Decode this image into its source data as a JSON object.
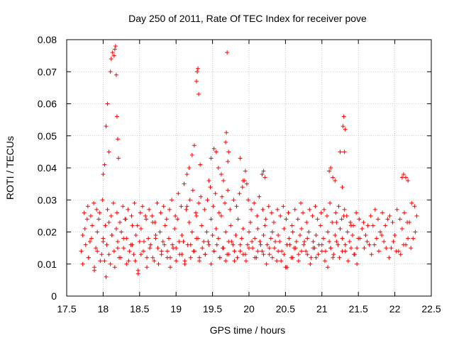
{
  "chart_data": {
    "type": "scatter",
    "title": "Day 250 of 2011, Rate Of TEC Index for receiver pove",
    "xlabel": "GPS time / hours",
    "ylabel": "ROTI / TECUs",
    "xlim": [
      17.5,
      22.5
    ],
    "ylim": [
      0,
      0.08
    ],
    "xticks": [
      "17.5",
      "18",
      "18.5",
      "19",
      "19.5",
      "20",
      "20.5",
      "21",
      "21.5",
      "22",
      "22.5"
    ],
    "xtick_values": [
      17.5,
      18,
      18.5,
      19,
      19.5,
      20,
      20.5,
      21,
      21.5,
      22,
      22.5
    ],
    "yticks": [
      "0",
      "0.01",
      "0.02",
      "0.03",
      "0.04",
      "0.05",
      "0.06",
      "0.07",
      "0.08"
    ],
    "ytick_values": [
      0,
      0.01,
      0.02,
      0.03,
      0.04,
      0.05,
      0.06,
      0.07,
      0.08
    ],
    "grid": true,
    "marker": "+",
    "color": "#ff0000",
    "series": [
      {
        "name": "ROTI",
        "x": [
          17.7,
          17.72,
          17.75,
          17.78,
          17.8,
          17.82,
          17.85,
          17.88,
          17.9,
          17.92,
          17.95,
          17.98,
          18.0,
          18.02,
          18.05,
          18.08,
          18.1,
          18.12,
          18.15,
          18.18,
          18.2,
          18.22,
          18.25,
          18.28,
          18.3,
          18.32,
          18.35,
          18.38,
          18.4,
          18.42,
          18.45,
          18.48,
          18.5,
          18.52,
          18.55,
          18.58,
          18.6,
          18.62,
          18.65,
          18.68,
          18.7,
          18.72,
          18.75,
          18.78,
          18.8,
          18.82,
          18.85,
          18.88,
          18.9,
          18.92,
          18.95,
          18.98,
          19.0,
          19.02,
          19.05,
          19.08,
          19.1,
          19.12,
          19.15,
          19.18,
          19.2,
          19.22,
          19.25,
          19.28,
          19.3,
          19.32,
          19.35,
          19.38,
          19.4,
          19.42,
          19.45,
          19.48,
          19.5,
          19.52,
          19.55,
          19.58,
          19.6,
          19.62,
          19.65,
          19.68,
          19.7,
          19.72,
          19.75,
          19.78,
          19.8,
          19.82,
          19.85,
          19.88,
          19.9,
          19.92,
          19.95,
          19.98,
          20.0,
          20.02,
          20.05,
          20.08,
          20.1,
          20.12,
          20.15,
          20.18,
          20.2,
          20.22,
          20.25,
          20.28,
          20.3,
          20.32,
          20.35,
          20.38,
          20.4,
          20.42,
          20.45,
          20.48,
          20.5,
          20.52,
          20.55,
          20.58,
          20.6,
          20.62,
          20.65,
          20.68,
          20.7,
          20.72,
          20.75,
          20.78,
          20.8,
          20.82,
          20.85,
          20.88,
          20.9,
          20.92,
          20.95,
          20.98,
          21.0,
          21.02,
          21.05,
          21.08,
          21.1,
          21.12,
          21.15,
          21.18,
          21.2,
          21.22,
          21.25,
          21.28,
          21.3,
          21.32,
          21.35,
          21.38,
          21.4,
          21.42,
          21.45,
          21.48,
          21.5,
          21.55,
          21.6,
          21.65,
          21.7,
          21.75,
          21.8,
          21.85,
          21.9,
          21.95,
          22.0,
          22.05,
          22.1,
          22.15,
          22.2,
          22.25,
          22.3,
          17.72,
          17.76,
          17.8,
          17.84,
          17.88,
          17.92,
          17.96,
          18.0,
          18.04,
          18.08,
          18.12,
          18.16,
          18.2,
          18.24,
          18.28,
          18.32,
          18.36,
          18.4,
          18.44,
          18.48,
          18.52,
          18.56,
          18.6,
          18.64,
          18.68,
          18.72,
          18.76,
          18.8,
          18.84,
          18.88,
          18.92,
          18.96,
          19.0,
          19.04,
          19.08,
          19.12,
          19.16,
          19.2,
          19.24,
          19.28,
          19.32,
          19.36,
          19.4,
          19.44,
          19.48,
          19.52,
          19.56,
          19.6,
          19.64,
          19.68,
          19.72,
          19.76,
          19.8,
          19.84,
          19.88,
          19.92,
          19.96,
          20.0,
          20.04,
          20.08,
          20.12,
          20.16,
          20.2,
          20.24,
          20.28,
          20.32,
          20.36,
          20.4,
          20.44,
          20.48,
          20.52,
          20.56,
          20.6,
          20.64,
          20.68,
          20.72,
          20.76,
          20.8,
          20.84,
          20.88,
          20.92,
          20.96,
          21.0,
          21.04,
          21.08,
          21.12,
          21.16,
          21.2,
          21.24,
          21.28,
          21.32,
          21.36,
          21.4,
          21.44,
          21.48,
          21.52,
          21.58,
          21.62,
          21.68,
          21.72,
          21.78,
          21.82,
          21.88,
          21.92,
          21.98,
          22.02,
          22.08,
          22.12,
          22.18,
          22.22,
          22.28,
          17.74,
          17.79,
          17.83,
          17.87,
          17.91,
          17.94,
          17.99,
          18.03,
          18.06,
          18.11,
          18.14,
          18.19,
          18.23,
          18.27,
          18.31,
          18.34,
          18.39,
          18.43,
          18.47,
          18.51,
          18.54,
          18.59,
          18.63,
          18.67,
          18.71,
          18.74,
          18.79,
          18.83,
          18.87,
          18.91,
          18.94,
          18.99,
          19.03,
          19.07,
          19.11,
          19.14,
          19.19,
          19.23,
          19.27,
          19.31,
          19.34,
          19.39,
          19.43,
          19.47,
          19.51,
          19.54,
          19.59,
          19.63,
          19.67,
          19.71,
          19.74,
          19.79,
          19.83,
          19.87,
          19.91,
          19.94,
          19.99,
          20.03,
          20.07,
          20.11,
          20.14,
          20.19,
          20.23,
          20.27,
          20.31,
          20.34,
          20.39,
          20.43,
          20.47,
          20.51,
          20.54,
          20.59,
          20.63,
          20.67,
          20.71,
          20.74,
          20.79,
          20.83,
          20.87,
          20.91,
          20.94,
          20.99,
          21.03,
          21.07,
          21.11,
          21.14,
          21.19,
          21.23,
          21.27,
          21.31,
          21.34,
          21.39,
          21.43,
          21.47,
          21.51,
          21.57,
          21.63,
          21.67,
          21.73,
          21.77,
          21.83,
          21.87,
          21.93,
          21.97,
          22.03,
          22.07,
          22.13,
          22.17,
          22.23,
          22.27,
          18.0,
          18.02,
          18.04,
          18.06,
          18.08,
          18.1,
          18.11,
          18.13,
          18.15,
          18.16,
          18.17,
          18.18,
          18.19,
          18.2,
          18.21,
          19.15,
          19.18,
          19.22,
          19.25,
          19.28,
          19.29,
          19.3,
          19.31,
          19.33,
          19.45,
          19.48,
          19.52,
          19.55,
          19.58,
          19.62,
          19.65,
          19.68,
          19.69,
          19.7,
          19.71,
          19.72,
          19.88,
          19.92,
          19.95,
          19.97,
          20.18,
          20.2,
          20.22,
          21.1,
          21.12,
          21.15,
          21.18,
          21.25,
          21.28,
          21.29,
          21.3,
          21.31,
          21.32,
          22.1,
          22.12,
          22.15,
          22.18
        ],
        "y": [
          0.014,
          0.019,
          0.021,
          0.024,
          0.012,
          0.017,
          0.022,
          0.009,
          0.015,
          0.02,
          0.026,
          0.013,
          0.018,
          0.011,
          0.016,
          0.023,
          0.01,
          0.019,
          0.014,
          0.021,
          0.017,
          0.012,
          0.02,
          0.015,
          0.024,
          0.018,
          0.011,
          0.016,
          0.022,
          0.013,
          0.019,
          0.008,
          0.017,
          0.021,
          0.014,
          0.025,
          0.012,
          0.018,
          0.016,
          0.023,
          0.011,
          0.019,
          0.015,
          0.02,
          0.013,
          0.017,
          0.022,
          0.014,
          0.018,
          0.012,
          0.016,
          0.021,
          0.015,
          0.024,
          0.013,
          0.019,
          0.017,
          0.011,
          0.028,
          0.023,
          0.016,
          0.02,
          0.014,
          0.025,
          0.018,
          0.012,
          0.022,
          0.017,
          0.013,
          0.02,
          0.016,
          0.024,
          0.019,
          0.014,
          0.021,
          0.018,
          0.012,
          0.025,
          0.015,
          0.02,
          0.013,
          0.017,
          0.022,
          0.016,
          0.011,
          0.019,
          0.024,
          0.014,
          0.018,
          0.021,
          0.013,
          0.016,
          0.02,
          0.023,
          0.015,
          0.018,
          0.012,
          0.021,
          0.017,
          0.014,
          0.019,
          0.022,
          0.016,
          0.013,
          0.018,
          0.02,
          0.015,
          0.011,
          0.019,
          0.017,
          0.014,
          0.021,
          0.009,
          0.016,
          0.018,
          0.012,
          0.02,
          0.015,
          0.017,
          0.013,
          0.019,
          0.021,
          0.016,
          0.014,
          0.018,
          0.02,
          0.012,
          0.017,
          0.015,
          0.019,
          0.013,
          0.022,
          0.016,
          0.018,
          0.014,
          0.02,
          0.017,
          0.015,
          0.012,
          0.019,
          0.023,
          0.016,
          0.021,
          0.018,
          0.025,
          0.014,
          0.02,
          0.017,
          0.022,
          0.019,
          0.013,
          0.015,
          0.018,
          0.021,
          0.019,
          0.016,
          0.022,
          0.018,
          0.02,
          0.017,
          0.024,
          0.015,
          0.019,
          0.014,
          0.021,
          0.016,
          0.023,
          0.018,
          0.025,
          0.01,
          0.016,
          0.012,
          0.018,
          0.008,
          0.014,
          0.011,
          0.017,
          0.006,
          0.013,
          0.019,
          0.009,
          0.015,
          0.012,
          0.018,
          0.01,
          0.014,
          0.016,
          0.011,
          0.007,
          0.013,
          0.017,
          0.009,
          0.015,
          0.012,
          0.018,
          0.01,
          0.014,
          0.016,
          0.012,
          0.009,
          0.015,
          0.011,
          0.017,
          0.013,
          0.01,
          0.016,
          0.012,
          0.014,
          0.018,
          0.011,
          0.015,
          0.013,
          0.017,
          0.01,
          0.014,
          0.016,
          0.012,
          0.015,
          0.011,
          0.013,
          0.017,
          0.014,
          0.012,
          0.016,
          0.013,
          0.011,
          0.015,
          0.017,
          0.012,
          0.014,
          0.016,
          0.013,
          0.01,
          0.015,
          0.012,
          0.017,
          0.014,
          0.011,
          0.013,
          0.009,
          0.016,
          0.012,
          0.015,
          0.011,
          0.014,
          0.017,
          0.013,
          0.01,
          0.015,
          0.012,
          0.016,
          0.014,
          0.011,
          0.009,
          0.015,
          0.013,
          0.017,
          0.012,
          0.014,
          0.016,
          0.011,
          0.015,
          0.013,
          0.01,
          0.018,
          0.015,
          0.017,
          0.013,
          0.016,
          0.014,
          0.019,
          0.015,
          0.012,
          0.017,
          0.014,
          0.013,
          0.016,
          0.018,
          0.015,
          0.02,
          0.026,
          0.028,
          0.025,
          0.029,
          0.027,
          0.024,
          0.03,
          0.022,
          0.027,
          0.025,
          0.029,
          0.026,
          0.023,
          0.028,
          0.024,
          0.027,
          0.025,
          0.029,
          0.022,
          0.026,
          0.028,
          0.024,
          0.027,
          0.025,
          0.023,
          0.029,
          0.026,
          0.028,
          0.024,
          0.027,
          0.03,
          0.025,
          0.032,
          0.028,
          0.035,
          0.027,
          0.03,
          0.033,
          0.026,
          0.029,
          0.031,
          0.027,
          0.03,
          0.034,
          0.028,
          0.032,
          0.026,
          0.031,
          0.029,
          0.033,
          0.027,
          0.03,
          0.028,
          0.032,
          0.034,
          0.036,
          0.03,
          0.027,
          0.029,
          0.025,
          0.031,
          0.027,
          0.024,
          0.028,
          0.026,
          0.023,
          0.027,
          0.025,
          0.028,
          0.024,
          0.026,
          0.022,
          0.027,
          0.024,
          0.029,
          0.026,
          0.023,
          0.027,
          0.025,
          0.028,
          0.024,
          0.026,
          0.027,
          0.025,
          0.029,
          0.023,
          0.026,
          0.028,
          0.024,
          0.027,
          0.025,
          0.023,
          0.022,
          0.026,
          0.024,
          0.023,
          0.022,
          0.025,
          0.027,
          0.024,
          0.026,
          0.022,
          0.025,
          0.023,
          0.027,
          0.024,
          0.026,
          0.023,
          0.029,
          0.028,
          0.038,
          0.041,
          0.053,
          0.06,
          0.045,
          0.07,
          0.074,
          0.076,
          0.075,
          0.077,
          0.078,
          0.069,
          0.056,
          0.049,
          0.043,
          0.038,
          0.04,
          0.044,
          0.047,
          0.067,
          0.07,
          0.071,
          0.063,
          0.041,
          0.036,
          0.043,
          0.046,
          0.045,
          0.04,
          0.038,
          0.036,
          0.048,
          0.051,
          0.076,
          0.042,
          0.045,
          0.043,
          0.036,
          0.039,
          0.035,
          0.038,
          0.039,
          0.037,
          0.039,
          0.04,
          0.037,
          0.036,
          0.045,
          0.034,
          0.053,
          0.056,
          0.045,
          0.052,
          0.037,
          0.038,
          0.037,
          0.036
        ]
      }
    ]
  }
}
